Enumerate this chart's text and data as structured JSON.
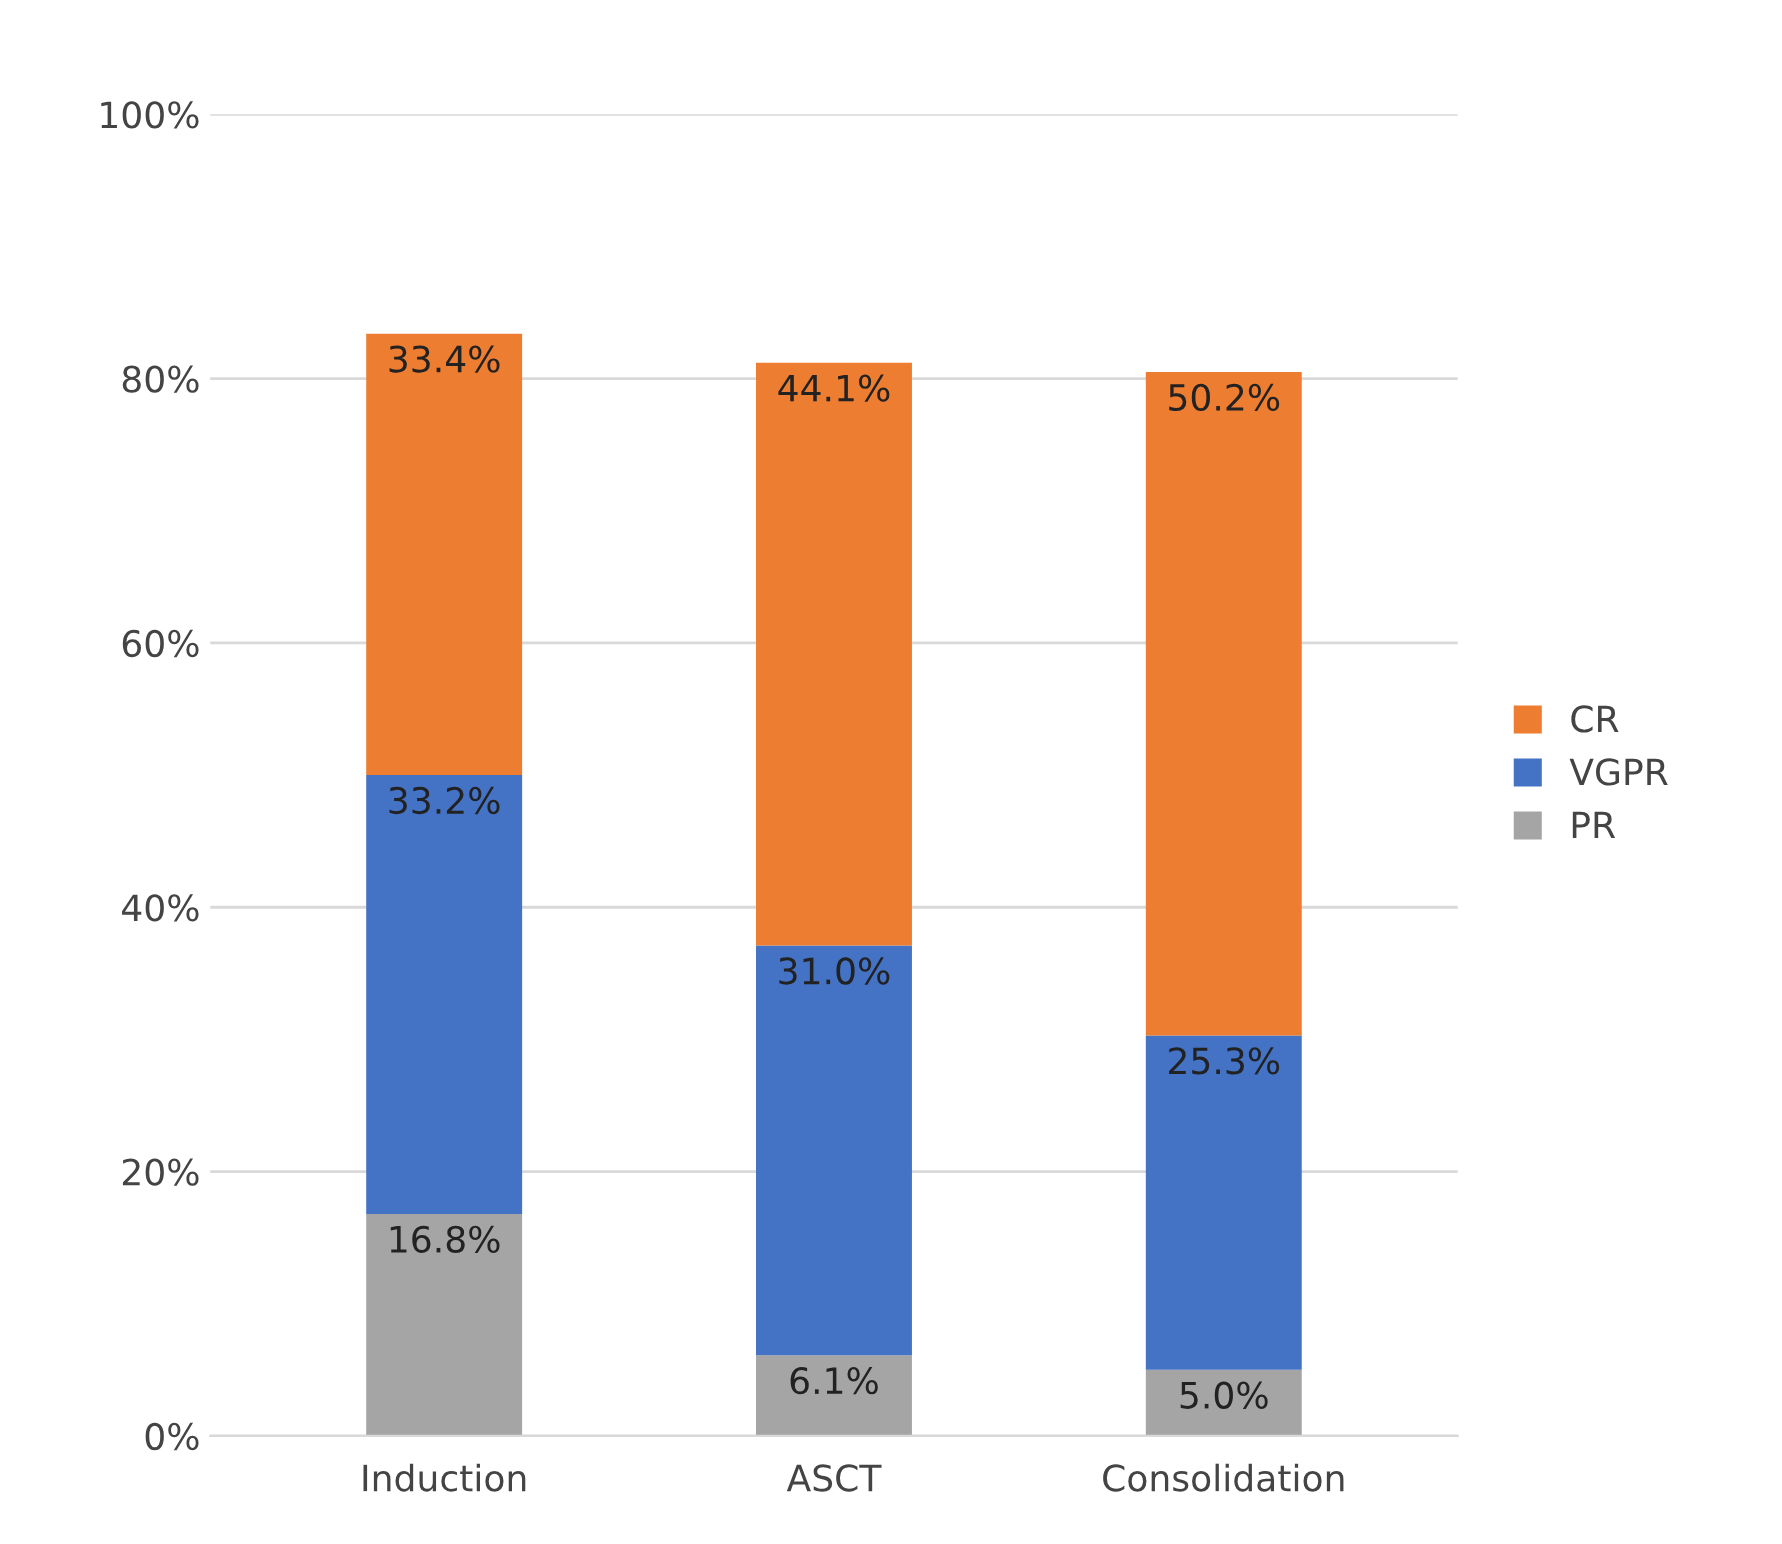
{
  "chart_data": {
    "type": "bar",
    "stacked": true,
    "categories": [
      "Induction",
      "ASCT",
      "Consolidation"
    ],
    "series": [
      {
        "name": "PR",
        "color": "#a5a5a5",
        "values": [
          16.8,
          6.1,
          5.0
        ],
        "value_labels": [
          "16.8%",
          "6.1%",
          "5.0%"
        ]
      },
      {
        "name": "VGPR",
        "color": "#4472c4",
        "values": [
          33.2,
          31.0,
          25.3
        ],
        "value_labels": [
          "33.2%",
          "31.0%",
          "25.3%"
        ]
      },
      {
        "name": "CR",
        "color": "#ed7d31",
        "values": [
          33.4,
          44.1,
          50.2
        ],
        "value_labels": [
          "33.4%",
          "44.1%",
          "50.2%"
        ]
      }
    ],
    "ylim": [
      0,
      100
    ],
    "yticks": [
      {
        "value": 0,
        "label": "0%"
      },
      {
        "value": 20,
        "label": "20%"
      },
      {
        "value": 40,
        "label": "40%"
      },
      {
        "value": 60,
        "label": "60%"
      },
      {
        "value": 80,
        "label": "80%"
      },
      {
        "value": 100,
        "label": "100%"
      }
    ],
    "grid": "y",
    "legend": "right"
  }
}
